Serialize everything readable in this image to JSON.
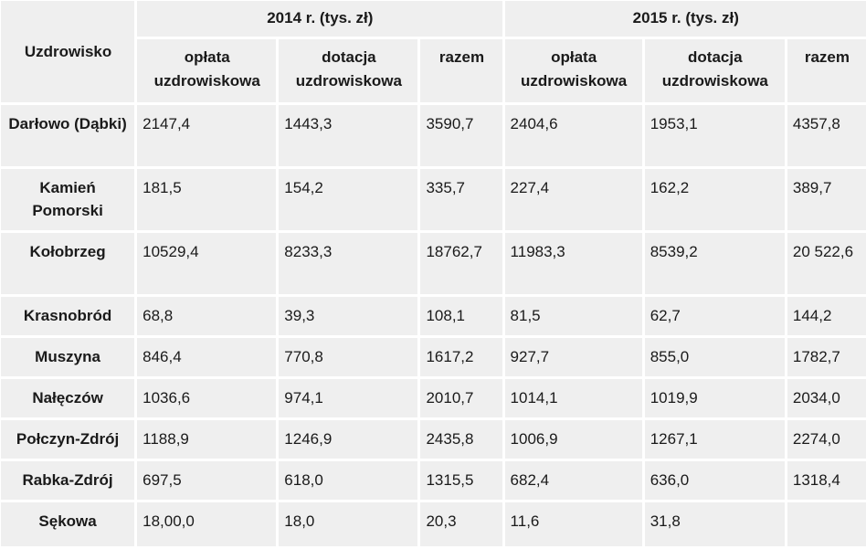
{
  "table": {
    "corner_header": "Uzdrowisko",
    "years": [
      {
        "label": "2014 r. (tys. zł)"
      },
      {
        "label": "2015 r. (tys. zł)"
      }
    ],
    "subheaders": [
      "opłata uzdrowiskowa",
      "dotacja uzdrowiskowa",
      "razem",
      "opłata uzdrowiskowa",
      "dotacja uzdrowiskowa",
      "razem"
    ],
    "rows": [
      {
        "name": "Darłowo (Dąbki)",
        "values": [
          "2147,4",
          "1443,3",
          "3590,7",
          "2404,6",
          "1953,1",
          "4357,8"
        ]
      },
      {
        "name": "Kamień Pomorski",
        "values": [
          "181,5",
          "154,2",
          "335,7",
          "227,4",
          "162,2",
          "389,7"
        ]
      },
      {
        "name": "Kołobrzeg",
        "values": [
          "10529,4",
          "8233,3",
          "18762,7",
          "11983,3",
          "8539,2",
          "20 522,6"
        ]
      },
      {
        "name": "Krasnobród",
        "values": [
          "68,8",
          "39,3",
          "108,1",
          "81,5",
          "62,7",
          "144,2"
        ]
      },
      {
        "name": "Muszyna",
        "values": [
          "846,4",
          "770,8",
          "1617,2",
          "927,7",
          "855,0",
          "1782,7"
        ]
      },
      {
        "name": "Nałęczów",
        "values": [
          "1036,6",
          "974,1",
          "2010,7",
          "1014,1",
          "1019,9",
          "2034,0"
        ]
      },
      {
        "name": "Połczyn-Zdrój",
        "values": [
          "1188,9",
          "1246,9",
          "2435,8",
          "1006,9",
          "1267,1",
          "2274,0"
        ]
      },
      {
        "name": "Rabka-Zdrój",
        "values": [
          "697,5",
          "618,0",
          "1315,5",
          "682,4",
          "636,0",
          "1318,4"
        ]
      },
      {
        "name": "Sękowa",
        "values": [
          "18,00,0",
          "18,0",
          "20,3",
          "11,6",
          "31,8",
          ""
        ]
      }
    ]
  }
}
